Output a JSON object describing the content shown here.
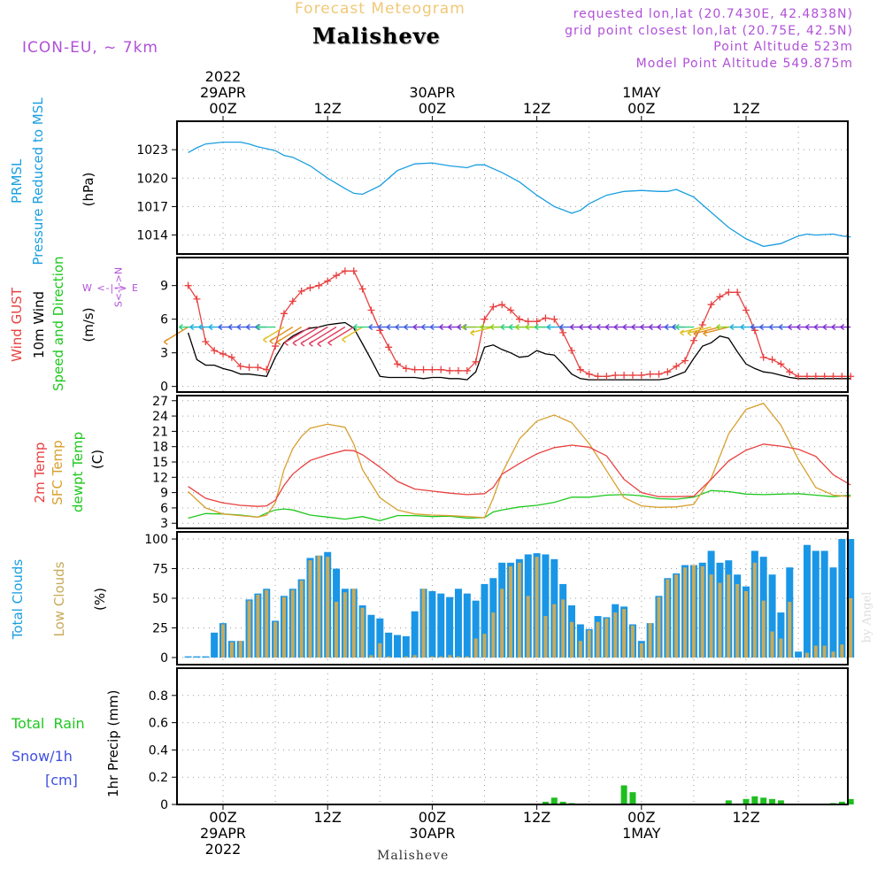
{
  "header": {
    "product_title": "Forecast Meteogram",
    "location": "Malisheve",
    "model": "ICON-EU, ~ 7km",
    "requested": "requested lon,lat (20.7430E, 42.4838N)",
    "gridpoint": "grid point closest lon,lat (20.75E, 42.5N)",
    "point_altitude": "Point Altitude 523m",
    "model_altitude": "Model Point Altitude 549.875m"
  },
  "footer": {
    "location": "Malisheve",
    "watermark": "by Angel"
  },
  "time_axis": {
    "ticks": [
      {
        "hour": 0,
        "top": [
          "2022",
          "29APR",
          "00Z"
        ],
        "bottom": [
          "00Z",
          "29APR",
          "2022"
        ]
      },
      {
        "hour": 12,
        "top": [
          "12Z"
        ],
        "bottom": [
          "12Z"
        ]
      },
      {
        "hour": 24,
        "top": [
          "30APR",
          "00Z"
        ],
        "bottom": [
          "00Z",
          "30APR"
        ]
      },
      {
        "hour": 36,
        "top": [
          "12Z"
        ],
        "bottom": [
          "12Z"
        ]
      },
      {
        "hour": 48,
        "top": [
          "1MAY",
          "00Z"
        ],
        "bottom": [
          "00Z",
          "1MAY"
        ]
      },
      {
        "hour": 60,
        "top": [
          "12Z"
        ],
        "bottom": [
          "12Z"
        ]
      }
    ]
  },
  "panels": {
    "pressure": {
      "label1": "PRMSL",
      "label2": "Pressure Reduced to MSL",
      "unit": "(hPa)",
      "ticks": [
        "1014",
        "1017",
        "1020",
        "1023"
      ]
    },
    "wind": {
      "label1": "Wind GUST",
      "label2": "10m Wind",
      "label3": "Speed and Direction",
      "unit": "(m/s)",
      "compass_ew": "W <-|-> E",
      "compass_ns": "S<-|->N",
      "ticks": [
        "0",
        "3",
        "6",
        "9"
      ]
    },
    "temp": {
      "label1": "2m Temp",
      "label2": "SFC Temp",
      "label3": "dewpt Temp",
      "unit": "(C)",
      "ticks": [
        "3",
        "6",
        "9",
        "12",
        "15",
        "18",
        "21",
        "24",
        "27"
      ]
    },
    "clouds": {
      "label1": "Total Clouds",
      "label2": "Low Clouds",
      "unit": "(%)",
      "ticks": [
        "0",
        "25",
        "50",
        "75",
        "100"
      ]
    },
    "precip": {
      "label1": "Total  Rain",
      "label2": "Snow/1h",
      "label3": "[cm]",
      "unit": "1hr Precip (mm)",
      "ticks": [
        "0",
        "0.2",
        "0.4",
        "0.6",
        "0.8"
      ]
    }
  },
  "colors": {
    "pressure": "#1a9ee0",
    "gust": "#e84040",
    "wind10": "#000000",
    "temp2m": "#e84040",
    "sfctemp": "#d8a030",
    "dewpt": "#1ec81e",
    "total_cloud": "#1a96e6",
    "low_cloud": "#c8aa5a",
    "rain": "#1ebe1e",
    "header": "#b050d8",
    "grid": "#888888"
  },
  "chart_data": [
    {
      "type": "line",
      "title": "PRMSL",
      "ylabel": "(hPa)",
      "ylim": [
        1012,
        1026
      ],
      "series": [
        {
          "name": "PRMSL",
          "x": [
            -4,
            -3,
            -2,
            0,
            2,
            3,
            4,
            6,
            7,
            8,
            10,
            12,
            14,
            15,
            16,
            18,
            20,
            22,
            24,
            26,
            28,
            29,
            30,
            32,
            34,
            36,
            38,
            40,
            41,
            42,
            44,
            46,
            48,
            50,
            51,
            52,
            54,
            56,
            58,
            60,
            62,
            64,
            66,
            67,
            68,
            70,
            71,
            72
          ],
          "values": [
            1022.7,
            1023.2,
            1023.6,
            1023.8,
            1023.8,
            1023.6,
            1023.3,
            1022.9,
            1022.4,
            1022.2,
            1021.3,
            1020.0,
            1018.9,
            1018.4,
            1018.3,
            1019.2,
            1020.8,
            1021.5,
            1021.6,
            1021.3,
            1021.1,
            1021.4,
            1021.4,
            1020.6,
            1019.6,
            1018.2,
            1017.0,
            1016.3,
            1016.6,
            1017.3,
            1018.2,
            1018.6,
            1018.7,
            1018.6,
            1018.6,
            1018.8,
            1018.0,
            1016.4,
            1014.8,
            1013.6,
            1012.8,
            1013.1,
            1013.9,
            1014.1,
            1014.0,
            1014.1,
            1013.9,
            1013.8
          ]
        }
      ]
    },
    {
      "type": "line",
      "title": "Wind",
      "ylabel": "(m/s)",
      "ylim": [
        -0.5,
        11.5
      ],
      "series": [
        {
          "name": "Wind GUST",
          "x": [
            -4,
            -3,
            -2,
            -1,
            0,
            1,
            2,
            3,
            4,
            5,
            6,
            7,
            8,
            9,
            10,
            11,
            12,
            13,
            14,
            15,
            16,
            17,
            18,
            19,
            20,
            21,
            22,
            23,
            24,
            25,
            26,
            27,
            28,
            29,
            30,
            31,
            32,
            33,
            34,
            35,
            36,
            37,
            38,
            39,
            40,
            41,
            42,
            43,
            44,
            45,
            46,
            47,
            48,
            49,
            50,
            51,
            52,
            53,
            54,
            55,
            56,
            57,
            58,
            59,
            60,
            61,
            62,
            63,
            64,
            65,
            66,
            67,
            68,
            69,
            70,
            71,
            72
          ],
          "values": [
            9.0,
            7.8,
            4.0,
            3.2,
            2.9,
            2.6,
            1.8,
            1.7,
            1.7,
            1.5,
            3.6,
            6.5,
            7.6,
            8.5,
            8.8,
            9.0,
            9.4,
            9.9,
            10.3,
            10.3,
            8.7,
            6.8,
            5.0,
            3.5,
            2.0,
            1.6,
            1.5,
            1.5,
            1.5,
            1.5,
            1.4,
            1.4,
            1.4,
            2.2,
            6.0,
            7.1,
            7.3,
            6.8,
            6.0,
            5.8,
            5.8,
            6.1,
            6.0,
            4.8,
            3.2,
            1.5,
            1.1,
            0.9,
            0.9,
            1.0,
            1.0,
            1.0,
            1.0,
            1.1,
            1.1,
            1.3,
            1.8,
            2.3,
            4.1,
            5.5,
            7.3,
            8.0,
            8.4,
            8.4,
            6.8,
            5.0,
            2.6,
            2.4,
            2.0,
            1.3,
            0.9,
            0.9,
            0.9,
            0.9,
            0.9,
            0.9,
            0.9
          ]
        },
        {
          "name": "10m Wind",
          "x": [
            -4,
            -3,
            -2,
            -1,
            0,
            1,
            2,
            3,
            4,
            5,
            6,
            7,
            8,
            9,
            10,
            11,
            12,
            13,
            14,
            15,
            16,
            17,
            18,
            19,
            20,
            21,
            22,
            23,
            24,
            25,
            26,
            27,
            28,
            29,
            30,
            31,
            32,
            33,
            34,
            35,
            36,
            37,
            38,
            39,
            40,
            41,
            42,
            43,
            44,
            45,
            46,
            47,
            48,
            49,
            50,
            51,
            52,
            53,
            54,
            55,
            56,
            57,
            58,
            59,
            60,
            61,
            62,
            63,
            64,
            65,
            66,
            67,
            68,
            69,
            70,
            71,
            72
          ],
          "values": [
            4.8,
            2.4,
            1.9,
            1.9,
            1.6,
            1.4,
            1.1,
            1.1,
            1.0,
            0.9,
            2.6,
            3.9,
            4.5,
            4.9,
            5.2,
            5.3,
            5.5,
            5.6,
            5.7,
            5.2,
            3.8,
            2.4,
            0.9,
            0.8,
            0.8,
            0.8,
            0.8,
            0.7,
            0.8,
            0.8,
            0.7,
            0.7,
            0.6,
            1.3,
            3.5,
            3.7,
            3.3,
            3.0,
            2.6,
            2.7,
            3.2,
            2.9,
            2.8,
            2.0,
            1.1,
            0.7,
            0.6,
            0.6,
            0.6,
            0.6,
            0.6,
            0.6,
            0.6,
            0.6,
            0.6,
            0.7,
            1.0,
            1.3,
            2.5,
            3.6,
            3.9,
            4.5,
            4.3,
            3.1,
            2.0,
            1.6,
            1.3,
            1.2,
            1.0,
            0.8,
            0.7,
            0.7,
            0.7,
            0.7,
            0.7,
            0.7,
            0.7
          ]
        }
      ]
    },
    {
      "type": "line",
      "title": "Temperature",
      "ylabel": "(C)",
      "ylim": [
        2,
        28
      ],
      "series": [
        {
          "name": "2m Temp",
          "x": [
            -4,
            -2,
            0,
            2,
            4,
            5,
            6,
            7,
            8,
            9,
            10,
            12,
            14,
            15,
            16,
            18,
            20,
            22,
            24,
            26,
            28,
            30,
            31,
            32,
            34,
            36,
            38,
            40,
            42,
            44,
            46,
            48,
            50,
            52,
            54,
            56,
            58,
            60,
            62,
            64,
            66,
            68,
            70,
            72
          ],
          "values": [
            10.2,
            7.9,
            7.0,
            6.5,
            6.3,
            6.4,
            7.5,
            10.4,
            12.6,
            14.0,
            15.3,
            16.4,
            17.3,
            17.2,
            16.4,
            14.0,
            11.2,
            9.7,
            9.3,
            8.9,
            8.6,
            8.8,
            10.0,
            12.6,
            14.7,
            16.6,
            17.8,
            18.3,
            17.9,
            16.2,
            11.6,
            9.0,
            8.2,
            8.2,
            8.3,
            11.6,
            15.2,
            17.3,
            18.5,
            18.1,
            17.5,
            16.1,
            12.5,
            10.5
          ]
        },
        {
          "name": "SFC Temp",
          "x": [
            -4,
            -2,
            0,
            2,
            4,
            5,
            6,
            7,
            8,
            9,
            10,
            12,
            14,
            15,
            16,
            18,
            20,
            22,
            24,
            26,
            28,
            30,
            31,
            32,
            34,
            36,
            38,
            40,
            42,
            44,
            46,
            48,
            50,
            52,
            54,
            56,
            58,
            60,
            62,
            64,
            66,
            68,
            70,
            72
          ],
          "values": [
            9.2,
            6.0,
            4.8,
            4.5,
            4.2,
            4.6,
            7.0,
            13.5,
            17.6,
            20.0,
            21.6,
            22.4,
            21.8,
            18.5,
            13.5,
            8.0,
            5.6,
            4.8,
            4.6,
            4.5,
            4.3,
            4.1,
            7.9,
            12.8,
            19.5,
            23.0,
            24.2,
            22.7,
            18.6,
            13.3,
            8.0,
            6.4,
            6.1,
            6.2,
            6.7,
            11.8,
            20.5,
            25.3,
            26.5,
            22.2,
            15.5,
            10.0,
            8.5,
            8.2
          ]
        },
        {
          "name": "dewpt Temp",
          "x": [
            -4,
            -2,
            0,
            2,
            4,
            5,
            6,
            7,
            8,
            10,
            12,
            14,
            16,
            18,
            20,
            22,
            24,
            26,
            28,
            30,
            31,
            32,
            34,
            36,
            38,
            40,
            42,
            44,
            46,
            48,
            50,
            52,
            54,
            56,
            58,
            60,
            62,
            64,
            66,
            68,
            70,
            72
          ],
          "values": [
            4.0,
            4.9,
            4.8,
            4.6,
            4.2,
            5.0,
            5.6,
            5.8,
            5.6,
            4.6,
            4.2,
            3.8,
            4.3,
            3.5,
            4.5,
            4.5,
            4.3,
            4.4,
            4.0,
            4.1,
            5.2,
            5.6,
            6.2,
            6.5,
            7.1,
            8.1,
            8.1,
            8.5,
            8.6,
            8.4,
            7.8,
            7.7,
            8.1,
            9.4,
            9.2,
            8.7,
            8.6,
            8.7,
            8.8,
            8.5,
            8.2,
            8.5
          ]
        }
      ]
    },
    {
      "type": "bar",
      "title": "Clouds",
      "ylabel": "(%)",
      "ylim": [
        -6,
        106
      ],
      "x": [
        -4,
        -3,
        -2,
        -1,
        0,
        1,
        2,
        3,
        4,
        5,
        6,
        7,
        8,
        9,
        10,
        11,
        12,
        13,
        14,
        15,
        16,
        17,
        18,
        19,
        20,
        21,
        22,
        23,
        24,
        25,
        26,
        27,
        28,
        29,
        30,
        31,
        32,
        33,
        34,
        35,
        36,
        37,
        38,
        39,
        40,
        41,
        42,
        43,
        44,
        45,
        46,
        47,
        48,
        49,
        50,
        51,
        52,
        53,
        54,
        55,
        56,
        57,
        58,
        59,
        60,
        61,
        62,
        63,
        64,
        65,
        66,
        67,
        68,
        69,
        70,
        71,
        72
      ],
      "series": [
        {
          "name": "Total Clouds",
          "values": [
            1,
            1,
            1,
            21,
            29,
            14,
            14,
            49,
            54,
            58,
            31,
            52,
            58,
            66,
            84,
            86,
            89,
            75,
            58,
            58,
            44,
            36,
            33,
            21,
            19,
            18,
            39,
            58,
            56,
            54,
            51,
            58,
            54,
            48,
            62,
            67,
            80,
            80,
            83,
            87,
            88,
            87,
            83,
            62,
            44,
            28,
            24,
            35,
            34,
            45,
            43,
            28,
            14,
            29,
            52,
            67,
            71,
            78,
            78,
            80,
            90,
            80,
            82,
            70,
            60,
            90,
            85,
            70,
            38,
            76,
            5,
            95,
            90,
            90,
            76,
            100,
            100
          ]
        },
        {
          "name": "Low Clouds",
          "values": [
            0,
            0,
            0,
            0,
            28,
            13,
            14,
            48,
            53,
            57,
            30,
            51,
            57,
            65,
            82,
            86,
            85,
            47,
            55,
            58,
            42,
            2,
            12,
            1,
            0,
            1,
            2,
            58,
            1,
            1,
            2,
            1,
            1,
            16,
            20,
            38,
            58,
            77,
            80,
            52,
            85,
            35,
            45,
            49,
            30,
            14,
            23,
            30,
            33,
            38,
            41,
            27,
            12,
            29,
            51,
            66,
            70,
            76,
            78,
            77,
            70,
            63,
            70,
            62,
            56,
            80,
            48,
            22,
            16,
            47,
            0,
            4,
            10,
            10,
            5,
            11,
            50
          ]
        }
      ]
    },
    {
      "type": "bar",
      "title": "1hr Precip",
      "ylabel": "1hr Precip (mm)",
      "ylim": [
        0,
        1.0
      ],
      "series": [
        {
          "name": "Total Rain",
          "x": [
            37,
            38,
            39,
            40,
            46,
            47,
            58,
            60,
            61,
            62,
            63,
            64,
            70,
            71,
            72
          ],
          "values": [
            0.02,
            0.05,
            0.02,
            0.01,
            0.14,
            0.09,
            0.03,
            0.04,
            0.06,
            0.05,
            0.04,
            0.03,
            0.01,
            0.02,
            0.04
          ]
        }
      ]
    }
  ]
}
